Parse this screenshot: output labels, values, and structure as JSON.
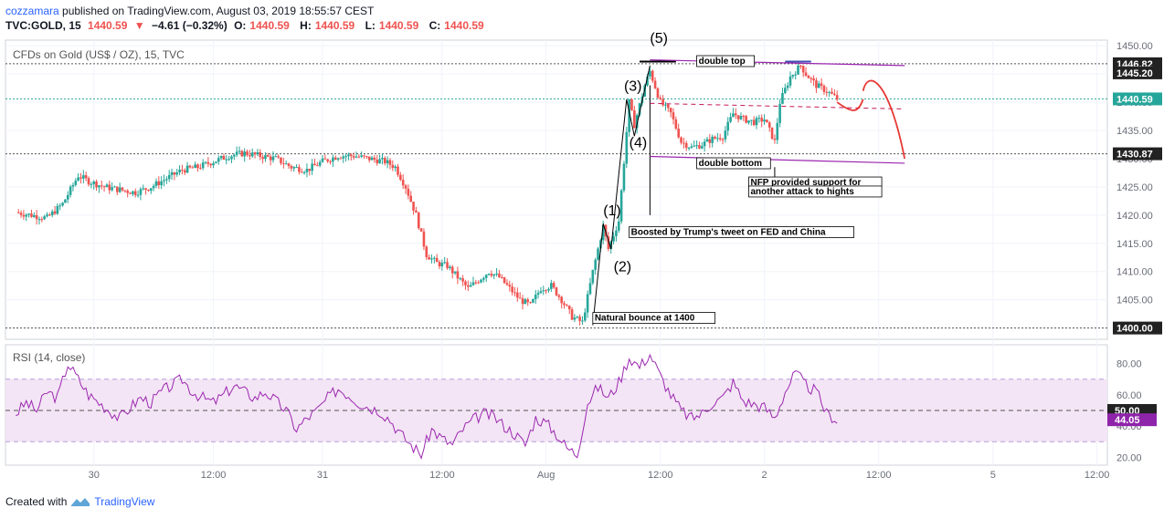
{
  "header": {
    "author": "cozzamara",
    "published": "published on TradingView.com, August 03, 2019 18:55:57 CEST",
    "symbol": "TVC:GOLD, 15",
    "last": "1440.59",
    "change_arrow": "▼",
    "change": "−4.61 (−0.32%)",
    "o_label": "O:",
    "o": "1440.59",
    "h_label": "H:",
    "h": "1440.59",
    "l_label": "L:",
    "l": "1440.59",
    "c_label": "C:",
    "c": "1440.59"
  },
  "pane_title": "CFDs on Gold (US$ / OZ), 15, TVC",
  "rsi_title": "RSI (14, close)",
  "footer": {
    "created_with": "Created with",
    "brand": "TradingView"
  },
  "colors": {
    "up": "#26a69a",
    "down": "#ef5350",
    "rsi": "#9c27b0",
    "rsi_band": "#f3e5f5",
    "purple_line": "#9c27b0",
    "forecast": "#e53935",
    "last_price": "#26a69a"
  },
  "chart_data": [
    {
      "type": "candlestick",
      "title": "CFDs on Gold (US$ / OZ), 15, TVC",
      "ylim": [
        1398,
        1451
      ],
      "y_ticks": [
        "1400.00",
        "1405.00",
        "1410.00",
        "1415.00",
        "1420.00",
        "1425.00",
        "1430.00",
        "1435.00",
        "1440.00",
        "1445.00",
        "1450.00"
      ],
      "price_labels": [
        {
          "value": 1446.82,
          "text": "1446.82",
          "style": "dark"
        },
        {
          "value": 1445.2,
          "text": "1445.20",
          "style": "dark"
        },
        {
          "value": 1440.59,
          "text": "1440.59",
          "style": "green"
        },
        {
          "value": 1430.87,
          "text": "1430.87",
          "style": "dark"
        },
        {
          "value": 1400.0,
          "text": "1400.00",
          "style": "dark"
        }
      ],
      "x_ticks": [
        "30",
        "12:00",
        "31",
        "12:00",
        "Aug",
        "12:00",
        "2",
        "12:00",
        "5",
        "12:00"
      ],
      "price_path": [
        [
          0,
          1420.5
        ],
        [
          3,
          1420.0
        ],
        [
          6,
          1419.5
        ],
        [
          9,
          1422.0
        ],
        [
          12,
          1427.0
        ],
        [
          14,
          1426.0
        ],
        [
          17,
          1425.0
        ],
        [
          20,
          1424.5
        ],
        [
          23,
          1424.0
        ],
        [
          26,
          1425.0
        ],
        [
          29,
          1426.5
        ],
        [
          32,
          1428.0
        ],
        [
          35,
          1428.5
        ],
        [
          38,
          1429.5
        ],
        [
          41,
          1430.5
        ],
        [
          44,
          1431.0
        ],
        [
          47,
          1430.5
        ],
        [
          50,
          1430.0
        ],
        [
          53,
          1428.5
        ],
        [
          56,
          1428.0
        ],
        [
          59,
          1429.5
        ],
        [
          62,
          1430.5
        ],
        [
          65,
          1430.5
        ],
        [
          68,
          1430.0
        ],
        [
          71,
          1429.5
        ],
        [
          73,
          1428.5
        ],
        [
          75,
          1425.0
        ],
        [
          77,
          1420.0
        ],
        [
          79,
          1413.0
        ],
        [
          81,
          1411.5
        ],
        [
          83,
          1411.0
        ],
        [
          85,
          1409.0
        ],
        [
          87,
          1407.0
        ],
        [
          89,
          1408.5
        ],
        [
          91,
          1410.0
        ],
        [
          93,
          1409.0
        ],
        [
          95,
          1407.0
        ],
        [
          97,
          1405.0
        ],
        [
          99,
          1404.0
        ],
        [
          101,
          1407.0
        ],
        [
          103,
          1407.5
        ],
        [
          105,
          1405.0
        ],
        [
          107,
          1402.0
        ],
        [
          109,
          1401.0
        ],
        [
          111,
          1410.0
        ],
        [
          113,
          1418.0
        ],
        [
          114,
          1414.0
        ],
        [
          116,
          1419.0
        ],
        [
          118,
          1440.0
        ],
        [
          119,
          1436.0
        ],
        [
          121,
          1443.0
        ],
        [
          122,
          1445.5
        ],
        [
          124,
          1440.0
        ],
        [
          126,
          1438.0
        ],
        [
          128,
          1433.0
        ],
        [
          130,
          1432.0
        ],
        [
          132,
          1432.5
        ],
        [
          134,
          1433.5
        ],
        [
          136,
          1434.0
        ],
        [
          138,
          1438.0
        ],
        [
          140,
          1437.0
        ],
        [
          142,
          1436.5
        ],
        [
          144,
          1437.0
        ],
        [
          146,
          1433.0
        ],
        [
          147,
          1440.0
        ],
        [
          149,
          1444.5
        ],
        [
          151,
          1446.5
        ],
        [
          152,
          1445.0
        ],
        [
          154,
          1443.0
        ],
        [
          156,
          1442.0
        ],
        [
          158,
          1440.6
        ]
      ],
      "annotations": [
        {
          "text": "(1)",
          "x": 113,
          "y": 1420.0
        },
        {
          "text": "(2)",
          "x": 115,
          "y": 1410.0
        },
        {
          "text": "(3)",
          "x": 117,
          "y": 1442.0
        },
        {
          "text": "(4)",
          "x": 118,
          "y": 1432.0
        },
        {
          "text": "(5)",
          "x": 122,
          "y": 1450.5
        },
        {
          "text": "double top",
          "x": 131,
          "y": 1446.8,
          "box": true
        },
        {
          "text": "double bottom",
          "x": 131,
          "y": 1428.7,
          "box": true
        },
        {
          "text": "Boosted by Trump's tweet on FED and China",
          "x": 118,
          "y": 1416.5,
          "box": true
        },
        {
          "text": "NFP provided support for",
          "x": 141,
          "y": 1425.3,
          "box": true
        },
        {
          "text": "another attack to hights",
          "x": 141,
          "y": 1423.7,
          "box": true
        },
        {
          "text": "Natural bounce at 1400",
          "x": 111,
          "y": 1401.3,
          "box": true
        }
      ]
    },
    {
      "type": "line",
      "title": "RSI (14, close)",
      "ylim": [
        15,
        92
      ],
      "y_ticks": [
        "20.00",
        "40.00",
        "60.00",
        "80.00"
      ],
      "levels": [
        30,
        50,
        70
      ],
      "value_labels": [
        {
          "value": 50,
          "text": "50.00",
          "style": "dark"
        },
        {
          "value": 44.05,
          "text": "44.05",
          "style": "purple"
        }
      ],
      "values": [
        [
          0,
          48
        ],
        [
          2,
          55
        ],
        [
          4,
          50
        ],
        [
          6,
          62
        ],
        [
          8,
          58
        ],
        [
          10,
          80
        ],
        [
          12,
          70
        ],
        [
          14,
          60
        ],
        [
          16,
          55
        ],
        [
          18,
          50
        ],
        [
          20,
          45
        ],
        [
          22,
          52
        ],
        [
          24,
          58
        ],
        [
          26,
          55
        ],
        [
          28,
          62
        ],
        [
          30,
          66
        ],
        [
          32,
          70
        ],
        [
          34,
          62
        ],
        [
          36,
          58
        ],
        [
          38,
          55
        ],
        [
          40,
          60
        ],
        [
          42,
          66
        ],
        [
          44,
          62
        ],
        [
          46,
          58
        ],
        [
          48,
          62
        ],
        [
          50,
          56
        ],
        [
          52,
          50
        ],
        [
          54,
          38
        ],
        [
          56,
          45
        ],
        [
          58,
          50
        ],
        [
          60,
          58
        ],
        [
          62,
          64
        ],
        [
          64,
          60
        ],
        [
          66,
          55
        ],
        [
          68,
          52
        ],
        [
          70,
          50
        ],
        [
          72,
          44
        ],
        [
          74,
          35
        ],
        [
          76,
          28
        ],
        [
          78,
          22
        ],
        [
          80,
          38
        ],
        [
          82,
          32
        ],
        [
          84,
          28
        ],
        [
          86,
          38
        ],
        [
          88,
          44
        ],
        [
          90,
          48
        ],
        [
          92,
          46
        ],
        [
          94,
          40
        ],
        [
          96,
          35
        ],
        [
          98,
          28
        ],
        [
          100,
          45
        ],
        [
          102,
          42
        ],
        [
          104,
          35
        ],
        [
          106,
          26
        ],
        [
          108,
          22
        ],
        [
          110,
          55
        ],
        [
          112,
          65
        ],
        [
          114,
          58
        ],
        [
          116,
          68
        ],
        [
          118,
          84
        ],
        [
          120,
          78
        ],
        [
          122,
          86
        ],
        [
          124,
          72
        ],
        [
          126,
          60
        ],
        [
          128,
          50
        ],
        [
          130,
          45
        ],
        [
          132,
          48
        ],
        [
          134,
          55
        ],
        [
          136,
          58
        ],
        [
          138,
          68
        ],
        [
          140,
          56
        ],
        [
          142,
          54
        ],
        [
          144,
          52
        ],
        [
          146,
          45
        ],
        [
          148,
          62
        ],
        [
          150,
          74
        ],
        [
          152,
          66
        ],
        [
          154,
          62
        ],
        [
          156,
          48
        ],
        [
          158,
          44
        ]
      ]
    }
  ]
}
